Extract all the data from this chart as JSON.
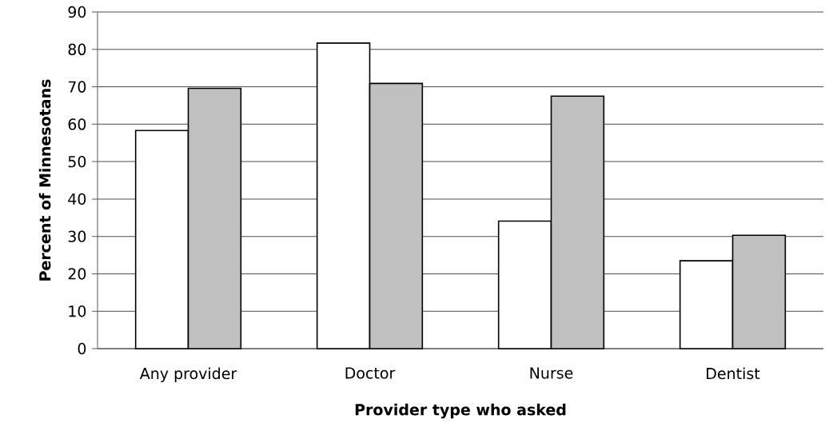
{
  "chart_data": {
    "type": "bar",
    "xlabel": "Provider type who asked",
    "ylabel": "Percent of Minnesotans",
    "categories": [
      "Any provider",
      "Doctor",
      "Nurse",
      "Dentist"
    ],
    "series": [
      {
        "color": "#ffffff",
        "values": [
          58.3,
          81.7,
          34.1,
          23.5
        ]
      },
      {
        "color": "#c0c0c0",
        "values": [
          69.6,
          70.9,
          67.5,
          30.3
        ]
      }
    ],
    "ylim": [
      0,
      90
    ],
    "yticks": [
      0,
      10,
      20,
      30,
      40,
      50,
      60,
      70,
      80,
      90
    ],
    "grid": "y"
  }
}
